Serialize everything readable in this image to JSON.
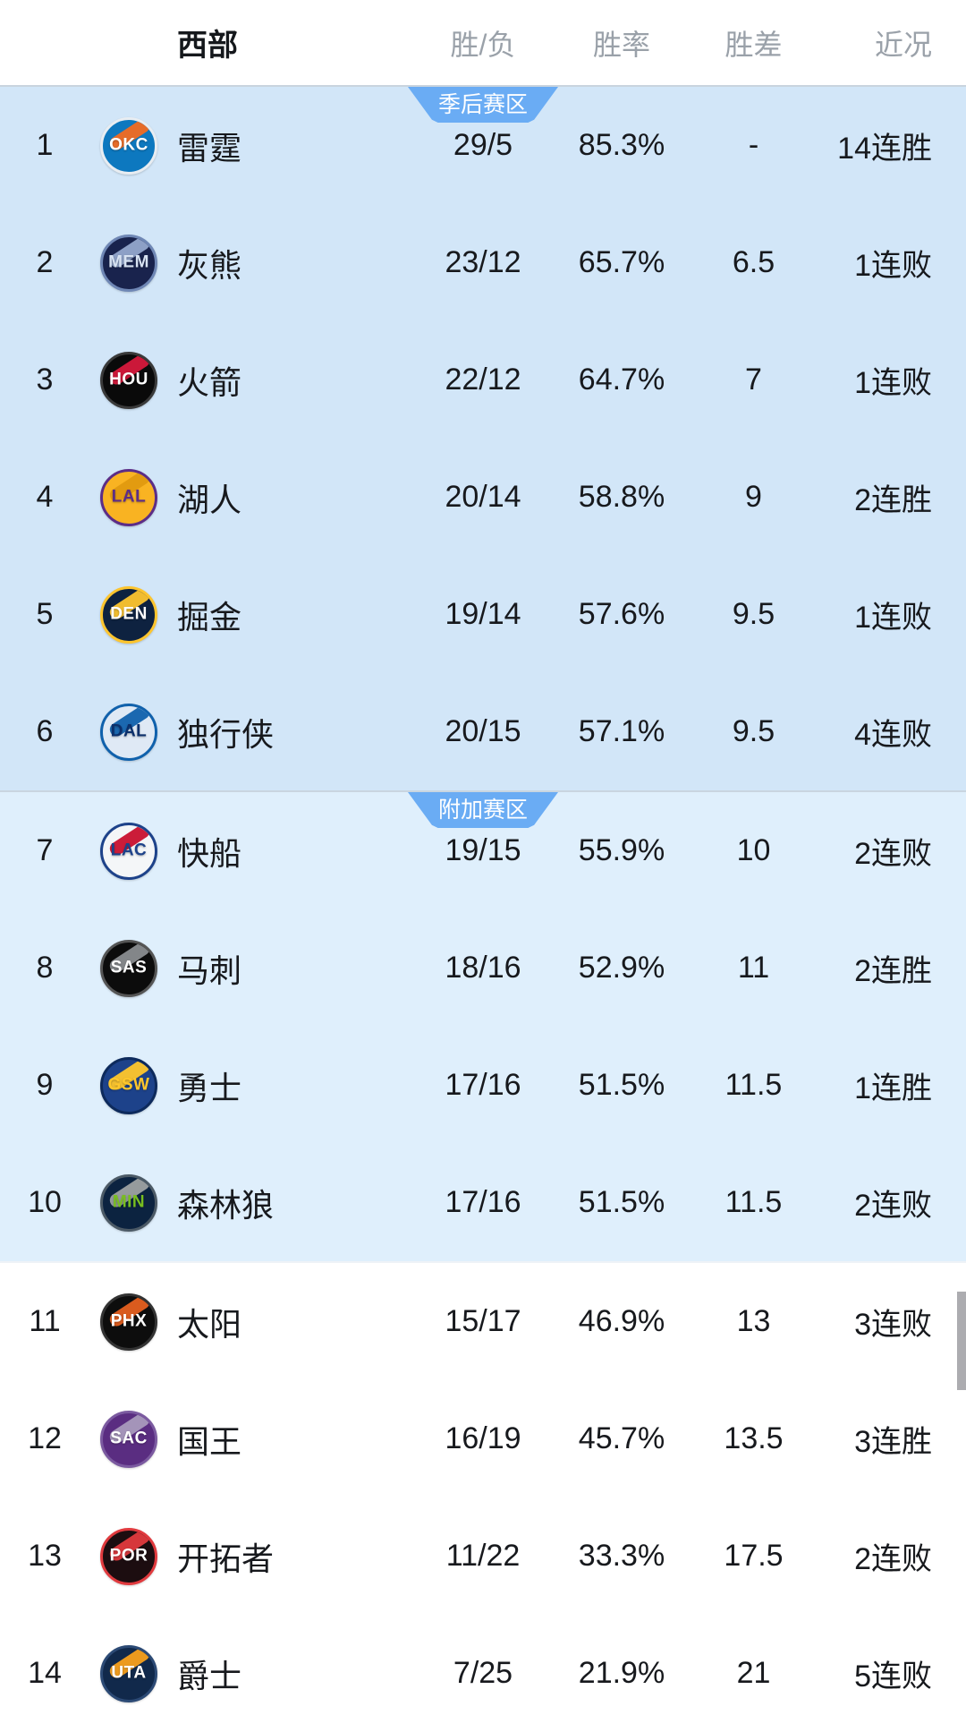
{
  "header": {
    "conference": "西部",
    "columns": {
      "wl": "胜/负",
      "rate": "胜率",
      "gb": "胜差",
      "recent": "近况"
    }
  },
  "colors": {
    "playoff_section_bg": "#d2e6f8",
    "playin_section_bg": "#dfeffc",
    "lottery_section_bg": "#ffffff",
    "zone_badge_bg": "#6aacf4",
    "zone_badge_text": "#ffffff",
    "header_label_gray": "#9aa1a9",
    "row_text": "#17191d",
    "scrollbar_gray": "#acacb0"
  },
  "sections": [
    {
      "badge": "季后赛区",
      "rows": [
        {
          "rank": "1",
          "abbr": "OKC",
          "name": "雷霆",
          "wl": "29/5",
          "rate": "85.3%",
          "gb": "-",
          "recent": "14连胜",
          "logo": {
            "bg": "#0d78bf",
            "ring": "#e8edf2",
            "accent": "#f26c21",
            "text": "#ffffff"
          }
        },
        {
          "rank": "2",
          "abbr": "MEM",
          "name": "灰熊",
          "wl": "23/12",
          "rate": "65.7%",
          "gb": "6.5",
          "recent": "1连败",
          "logo": {
            "bg": "#19234d",
            "ring": "#6f87b5",
            "accent": "#93a8cc",
            "text": "#d7e2f2"
          }
        },
        {
          "rank": "3",
          "abbr": "HOU",
          "name": "火箭",
          "wl": "22/12",
          "rate": "64.7%",
          "gb": "7",
          "recent": "1连败",
          "logo": {
            "bg": "#0a0a0a",
            "ring": "#3a3a3a",
            "accent": "#d6193c",
            "text": "#ffffff"
          }
        },
        {
          "rank": "4",
          "abbr": "LAL",
          "name": "湖人",
          "wl": "20/14",
          "rate": "58.8%",
          "gb": "9",
          "recent": "2连胜",
          "logo": {
            "bg": "#f9b322",
            "ring": "#5c2d87",
            "accent": "#e09a10",
            "text": "#5c2d87"
          }
        },
        {
          "rank": "5",
          "abbr": "DEN",
          "name": "掘金",
          "wl": "19/14",
          "rate": "57.6%",
          "gb": "9.5",
          "recent": "1连败",
          "logo": {
            "bg": "#0e2240",
            "ring": "#fdc52e",
            "accent": "#fdc52e",
            "text": "#ffffff"
          }
        },
        {
          "rank": "6",
          "abbr": "DAL",
          "name": "独行侠",
          "wl": "20/15",
          "rate": "57.1%",
          "gb": "9.5",
          "recent": "4连败",
          "logo": {
            "bg": "#dfe9f5",
            "ring": "#1061ac",
            "accent": "#1061ac",
            "text": "#0b2f6b"
          }
        }
      ]
    },
    {
      "badge": "附加赛区",
      "rows": [
        {
          "rank": "7",
          "abbr": "LAC",
          "name": "快船",
          "wl": "19/15",
          "rate": "55.9%",
          "gb": "10",
          "recent": "2连败",
          "logo": {
            "bg": "#f4f6f8",
            "ring": "#1d428a",
            "accent": "#c8102e",
            "text": "#1d428a"
          }
        },
        {
          "rank": "8",
          "abbr": "SAS",
          "name": "马刺",
          "wl": "18/16",
          "rate": "52.9%",
          "gb": "11",
          "recent": "2连胜",
          "logo": {
            "bg": "#0c0c0c",
            "ring": "#555555",
            "accent": "#8a8d90",
            "text": "#ffffff"
          }
        },
        {
          "rank": "9",
          "abbr": "GSW",
          "name": "勇士",
          "wl": "17/16",
          "rate": "51.5%",
          "gb": "11.5",
          "recent": "1连胜",
          "logo": {
            "bg": "#1d428a",
            "ring": "#0d2a5c",
            "accent": "#ffc72c",
            "text": "#ffc72c"
          }
        },
        {
          "rank": "10",
          "abbr": "MIN",
          "name": "森林狼",
          "wl": "17/16",
          "rate": "51.5%",
          "gb": "11.5",
          "recent": "2连败",
          "logo": {
            "bg": "#0c2340",
            "ring": "#4c5a66",
            "accent": "#9ea2a2",
            "text": "#78be20"
          }
        }
      ]
    },
    {
      "badge": null,
      "rows": [
        {
          "rank": "11",
          "abbr": "PHX",
          "name": "太阳",
          "wl": "15/17",
          "rate": "46.9%",
          "gb": "13",
          "recent": "3连败",
          "logo": {
            "bg": "#0d0d0d",
            "ring": "#333333",
            "accent": "#e56020",
            "text": "#ffffff"
          }
        },
        {
          "rank": "12",
          "abbr": "SAC",
          "name": "国王",
          "wl": "16/19",
          "rate": "45.7%",
          "gb": "13.5",
          "recent": "3连胜",
          "logo": {
            "bg": "#5a2d81",
            "ring": "#7b5aa0",
            "accent": "#a99abc",
            "text": "#ffffff"
          }
        },
        {
          "rank": "13",
          "abbr": "POR",
          "name": "开拓者",
          "wl": "11/22",
          "rate": "33.3%",
          "gb": "17.5",
          "recent": "2连败",
          "logo": {
            "bg": "#1c0d10",
            "ring": "#e03a3e",
            "accent": "#e03a3e",
            "text": "#ffffff"
          }
        },
        {
          "rank": "14",
          "abbr": "UTA",
          "name": "爵士",
          "wl": "7/25",
          "rate": "21.9%",
          "gb": "21",
          "recent": "5连败",
          "logo": {
            "bg": "#11294b",
            "ring": "#2c4a75",
            "accent": "#f9a01b",
            "text": "#ffffff"
          }
        }
      ]
    }
  ]
}
